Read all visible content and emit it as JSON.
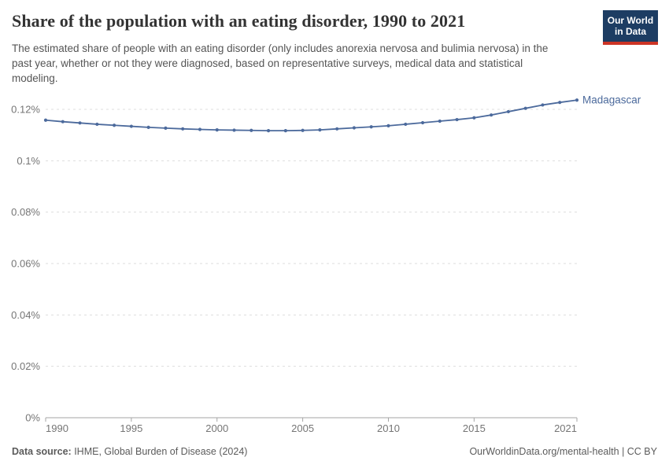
{
  "header": {
    "title": "Share of the population with an eating disorder, 1990 to 2021",
    "subtitle": "The estimated share of people with an eating disorder (only includes anorexia nervosa and bulimia nervosa) in the past year, whether or not they were diagnosed, based on representative surveys, medical data and statistical modeling.",
    "logo": {
      "line1": "Our World",
      "line2": "in Data"
    }
  },
  "chart_data": {
    "type": "line",
    "title": "Share of the population with an eating disorder, 1990 to 2021",
    "x": [
      1990,
      1991,
      1992,
      1993,
      1994,
      1995,
      1996,
      1997,
      1998,
      1999,
      2000,
      2001,
      2002,
      2003,
      2004,
      2005,
      2006,
      2007,
      2008,
      2009,
      2010,
      2011,
      2012,
      2013,
      2014,
      2015,
      2016,
      2017,
      2018,
      2019,
      2020,
      2021
    ],
    "series": [
      {
        "name": "Madagascar",
        "color": "#4C6A9C",
        "values": [
          0.1158,
          0.1152,
          0.1147,
          0.1142,
          0.1138,
          0.1134,
          0.113,
          0.1127,
          0.1124,
          0.1122,
          0.112,
          0.1119,
          0.1118,
          0.1117,
          0.1117,
          0.1118,
          0.112,
          0.1124,
          0.1128,
          0.1132,
          0.1136,
          0.1142,
          0.1148,
          0.1154,
          0.116,
          0.1167,
          0.1178,
          0.1191,
          0.1204,
          0.1217,
          0.1227,
          0.1236
        ]
      }
    ],
    "unit": "%",
    "xlim": [
      1990,
      2021
    ],
    "ylim": [
      0,
      0.12
    ],
    "y_ticks": [
      0,
      0.02,
      0.04,
      0.06,
      0.08,
      0.1,
      0.12
    ],
    "y_tick_labels": [
      "0%",
      "0.02%",
      "0.04%",
      "0.06%",
      "0.08%",
      "0.1%",
      "0.12%"
    ],
    "x_ticks": [
      1990,
      1995,
      2000,
      2005,
      2010,
      2015,
      2021
    ],
    "x_tick_labels": [
      "1990",
      "1995",
      "2000",
      "2005",
      "2010",
      "2015",
      "2021"
    ],
    "grid": "horizontal-dashed",
    "legend_position": "line-end-label"
  },
  "footer": {
    "source_label": "Data source:",
    "source_text": " IHME, Global Burden of Disease (2024)",
    "credit": "OurWorldinData.org/mental-health | CC BY"
  },
  "colors": {
    "line": "#4C6A9C",
    "grid": "#dddddd",
    "axis": "#a5a5a5",
    "tick_label": "#757575",
    "title": "#333333",
    "subtitle": "#555555",
    "footer": "#5b5b5b",
    "logo_bg": "#1d3d63",
    "logo_stripe": "#cc3425"
  }
}
